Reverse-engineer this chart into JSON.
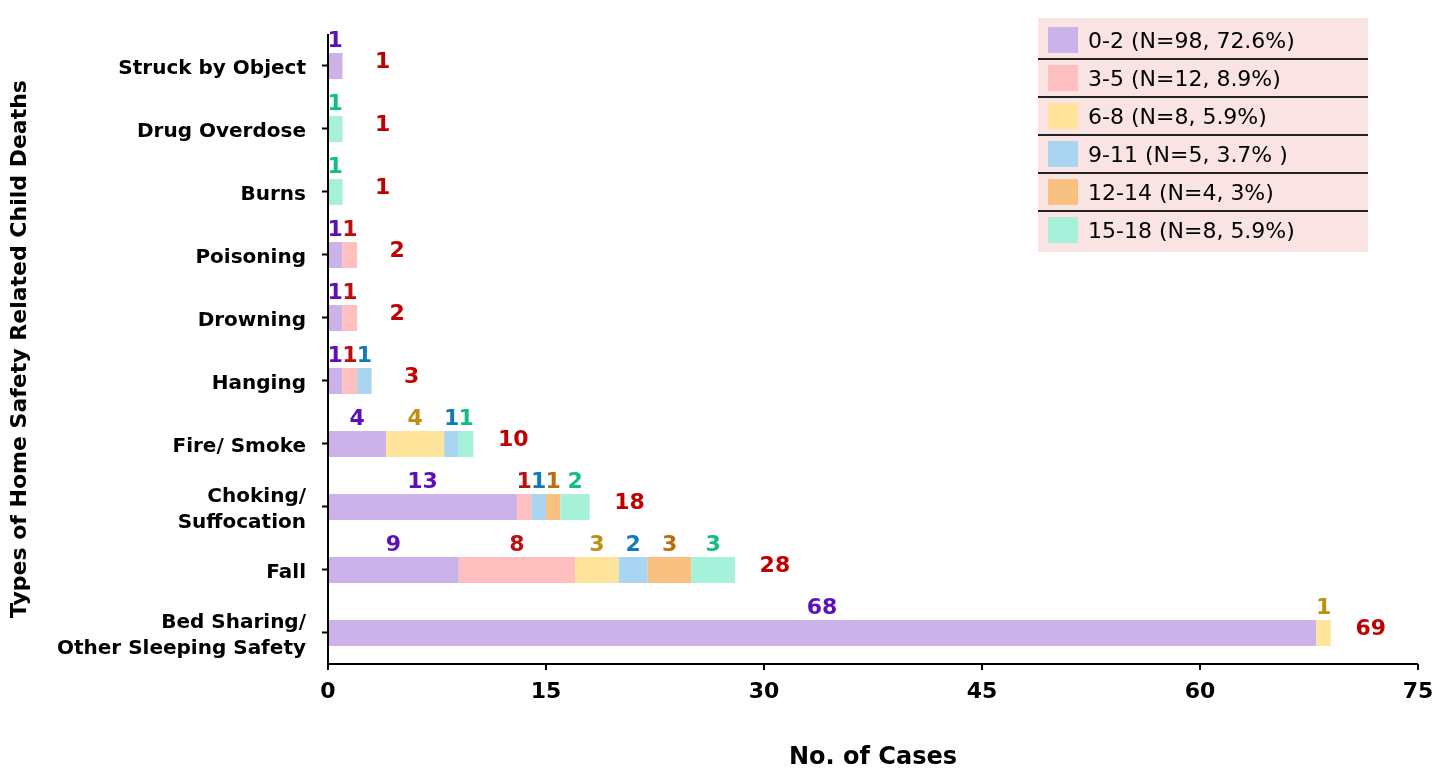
{
  "chart_data": {
    "type": "bar",
    "orientation": "horizontal",
    "stacked": true,
    "xlabel": "No. of  Cases",
    "ylabel": "Types of Home Safety Related Child Deaths",
    "categories": [
      "Struck by Object",
      "Drug Overdose",
      "Burns",
      "Poisoning",
      "Drowning",
      "Hanging",
      "Fire/ Smoke",
      "Choking/\nSuffocation",
      "Fall",
      "Bed Sharing/\nOther Sleeping Safety"
    ],
    "series": [
      {
        "name": "0-2 (N=98, 72.6%)",
        "color": "#cbb3e9",
        "values": [
          1,
          null,
          null,
          1,
          1,
          1,
          4,
          13,
          9,
          68
        ]
      },
      {
        "name": "3-5 (N=12, 8.9%)",
        "color": "#ffbfbf",
        "values": [
          null,
          null,
          null,
          1,
          1,
          1,
          null,
          1,
          8,
          null
        ]
      },
      {
        "name": "6-8 (N=8, 5.9%)",
        "color": "#ffe59b",
        "values": [
          null,
          null,
          null,
          null,
          null,
          null,
          4,
          null,
          3,
          1
        ]
      },
      {
        "name": "9-11 (N=5, 3.7% )",
        "color": "#a9d5f0",
        "values": [
          null,
          null,
          null,
          null,
          null,
          1,
          1,
          1,
          2,
          null
        ]
      },
      {
        "name": "12-14 (N=4, 3%)",
        "color": "#f8c181",
        "values": [
          null,
          null,
          null,
          null,
          null,
          null,
          null,
          1,
          3,
          null
        ]
      },
      {
        "name": "15-18 (N=8, 5.9%)",
        "color": "#a5f1d9",
        "values": [
          null,
          1,
          1,
          null,
          null,
          null,
          1,
          2,
          3,
          null
        ]
      }
    ],
    "totals": [
      "1",
      "1",
      "1",
      "2",
      "2",
      "3",
      "10",
      "18",
      "28",
      "69"
    ],
    "data_labels": true,
    "xlim": [
      0,
      75
    ],
    "xticks": [
      0,
      15,
      30,
      45,
      60,
      75
    ],
    "grid": false,
    "legend": "top right"
  }
}
